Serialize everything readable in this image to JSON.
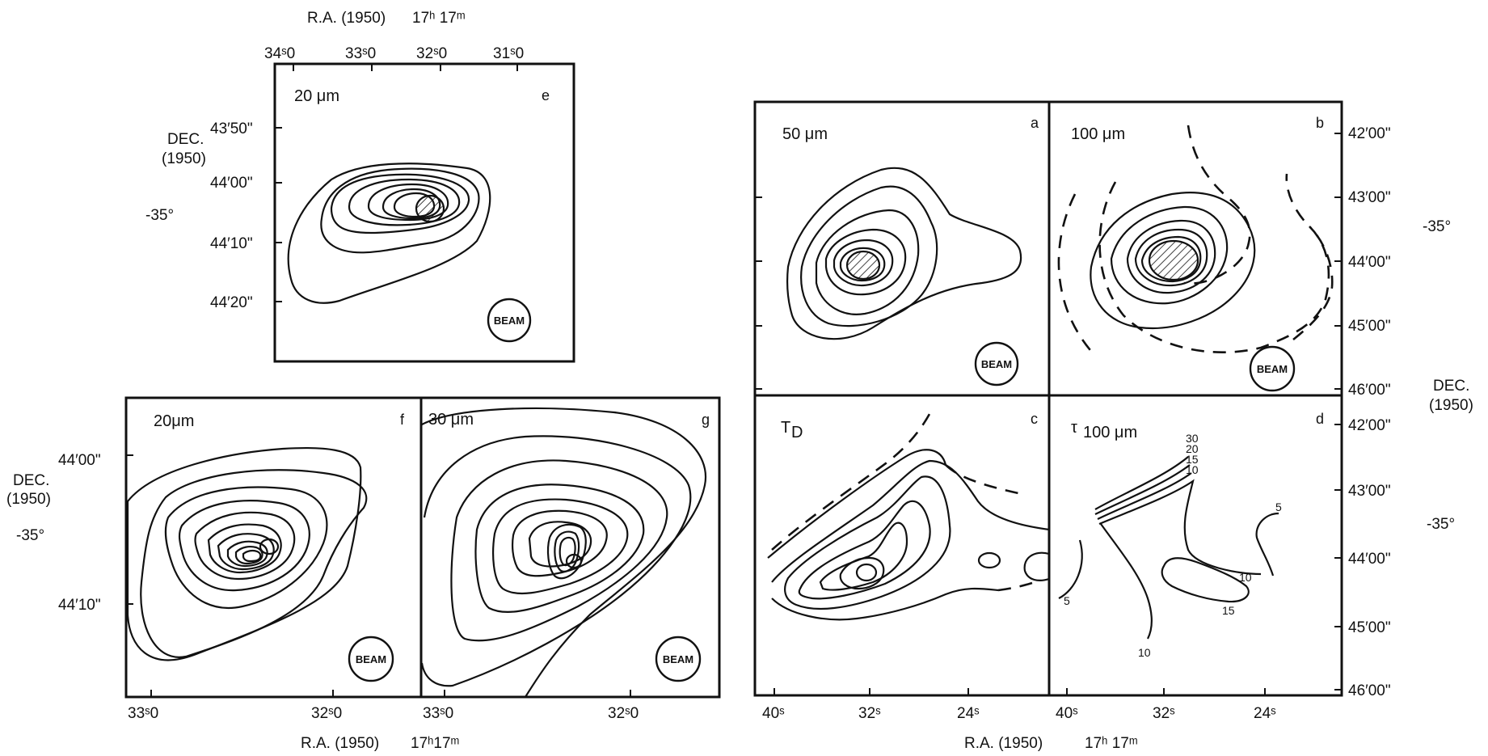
{
  "panels": {
    "e": {
      "label": "20 μm",
      "letter": "e",
      "beam": "BEAM"
    },
    "f": {
      "label": "20μm",
      "letter": "f",
      "beam": "BEAM"
    },
    "g": {
      "label": "30 μm",
      "letter": "g",
      "beam": "BEAM"
    },
    "a": {
      "label": "50 μm",
      "letter": "a",
      "beam": "BEAM"
    },
    "b": {
      "label": "100 μm",
      "letter": "b",
      "beam": "BEAM"
    },
    "c": {
      "label": "T",
      "label_sub": "D",
      "letter": "c"
    },
    "d": {
      "label": "τ",
      "label_sub": "100 μm",
      "letter": "d",
      "contour_labels": [
        "30",
        "20",
        "15",
        "10",
        "5",
        "10",
        "15",
        "10",
        "5"
      ]
    }
  },
  "axes": {
    "e": {
      "top_title": "R.A. (1950)",
      "top_epoch": "17ʰ 17ᵐ",
      "ra_ticks": [
        "34ˢ0",
        "33ˢ0",
        "32ˢ0",
        "31ˢ0"
      ],
      "dec_title": [
        "DEC.",
        "(1950)"
      ],
      "dec_deg": "-35°",
      "dec_ticks": [
        "43′50\"",
        "44′00\"",
        "44′10\"",
        "44′20\""
      ]
    },
    "fg": {
      "ra_ticks_f": [
        "33ˢ0",
        "32ˢ0"
      ],
      "ra_ticks_g": [
        "33ˢ0",
        "32ˢ0"
      ],
      "bottom_title": "R.A. (1950)",
      "bottom_epoch": "17ʰ17ᵐ",
      "dec_title": [
        "DEC.",
        "(1950)"
      ],
      "dec_deg": "-35°",
      "dec_ticks": [
        "44′00\"",
        "44′10\""
      ]
    },
    "abcd": {
      "ra_ticks_c": [
        "40ˢ",
        "32ˢ",
        "24ˢ"
      ],
      "ra_ticks_d": [
        "40ˢ",
        "32ˢ",
        "24ˢ"
      ],
      "bottom_title": "R.A. (1950)",
      "bottom_epoch": "17ʰ 17ᵐ",
      "dec_ticks_top": [
        "42′00\"",
        "43′00\"",
        "44′00\"",
        "45′00\"",
        "46′00\""
      ],
      "dec_ticks_bottom": [
        "42′00\"",
        "43′00\"",
        "44′00\"",
        "45′00\"",
        "46′00\""
      ],
      "dec_deg_top": "-35°",
      "dec_deg_bottom": "-35°",
      "dec_title": [
        "DEC.",
        "(1950)"
      ]
    }
  }
}
